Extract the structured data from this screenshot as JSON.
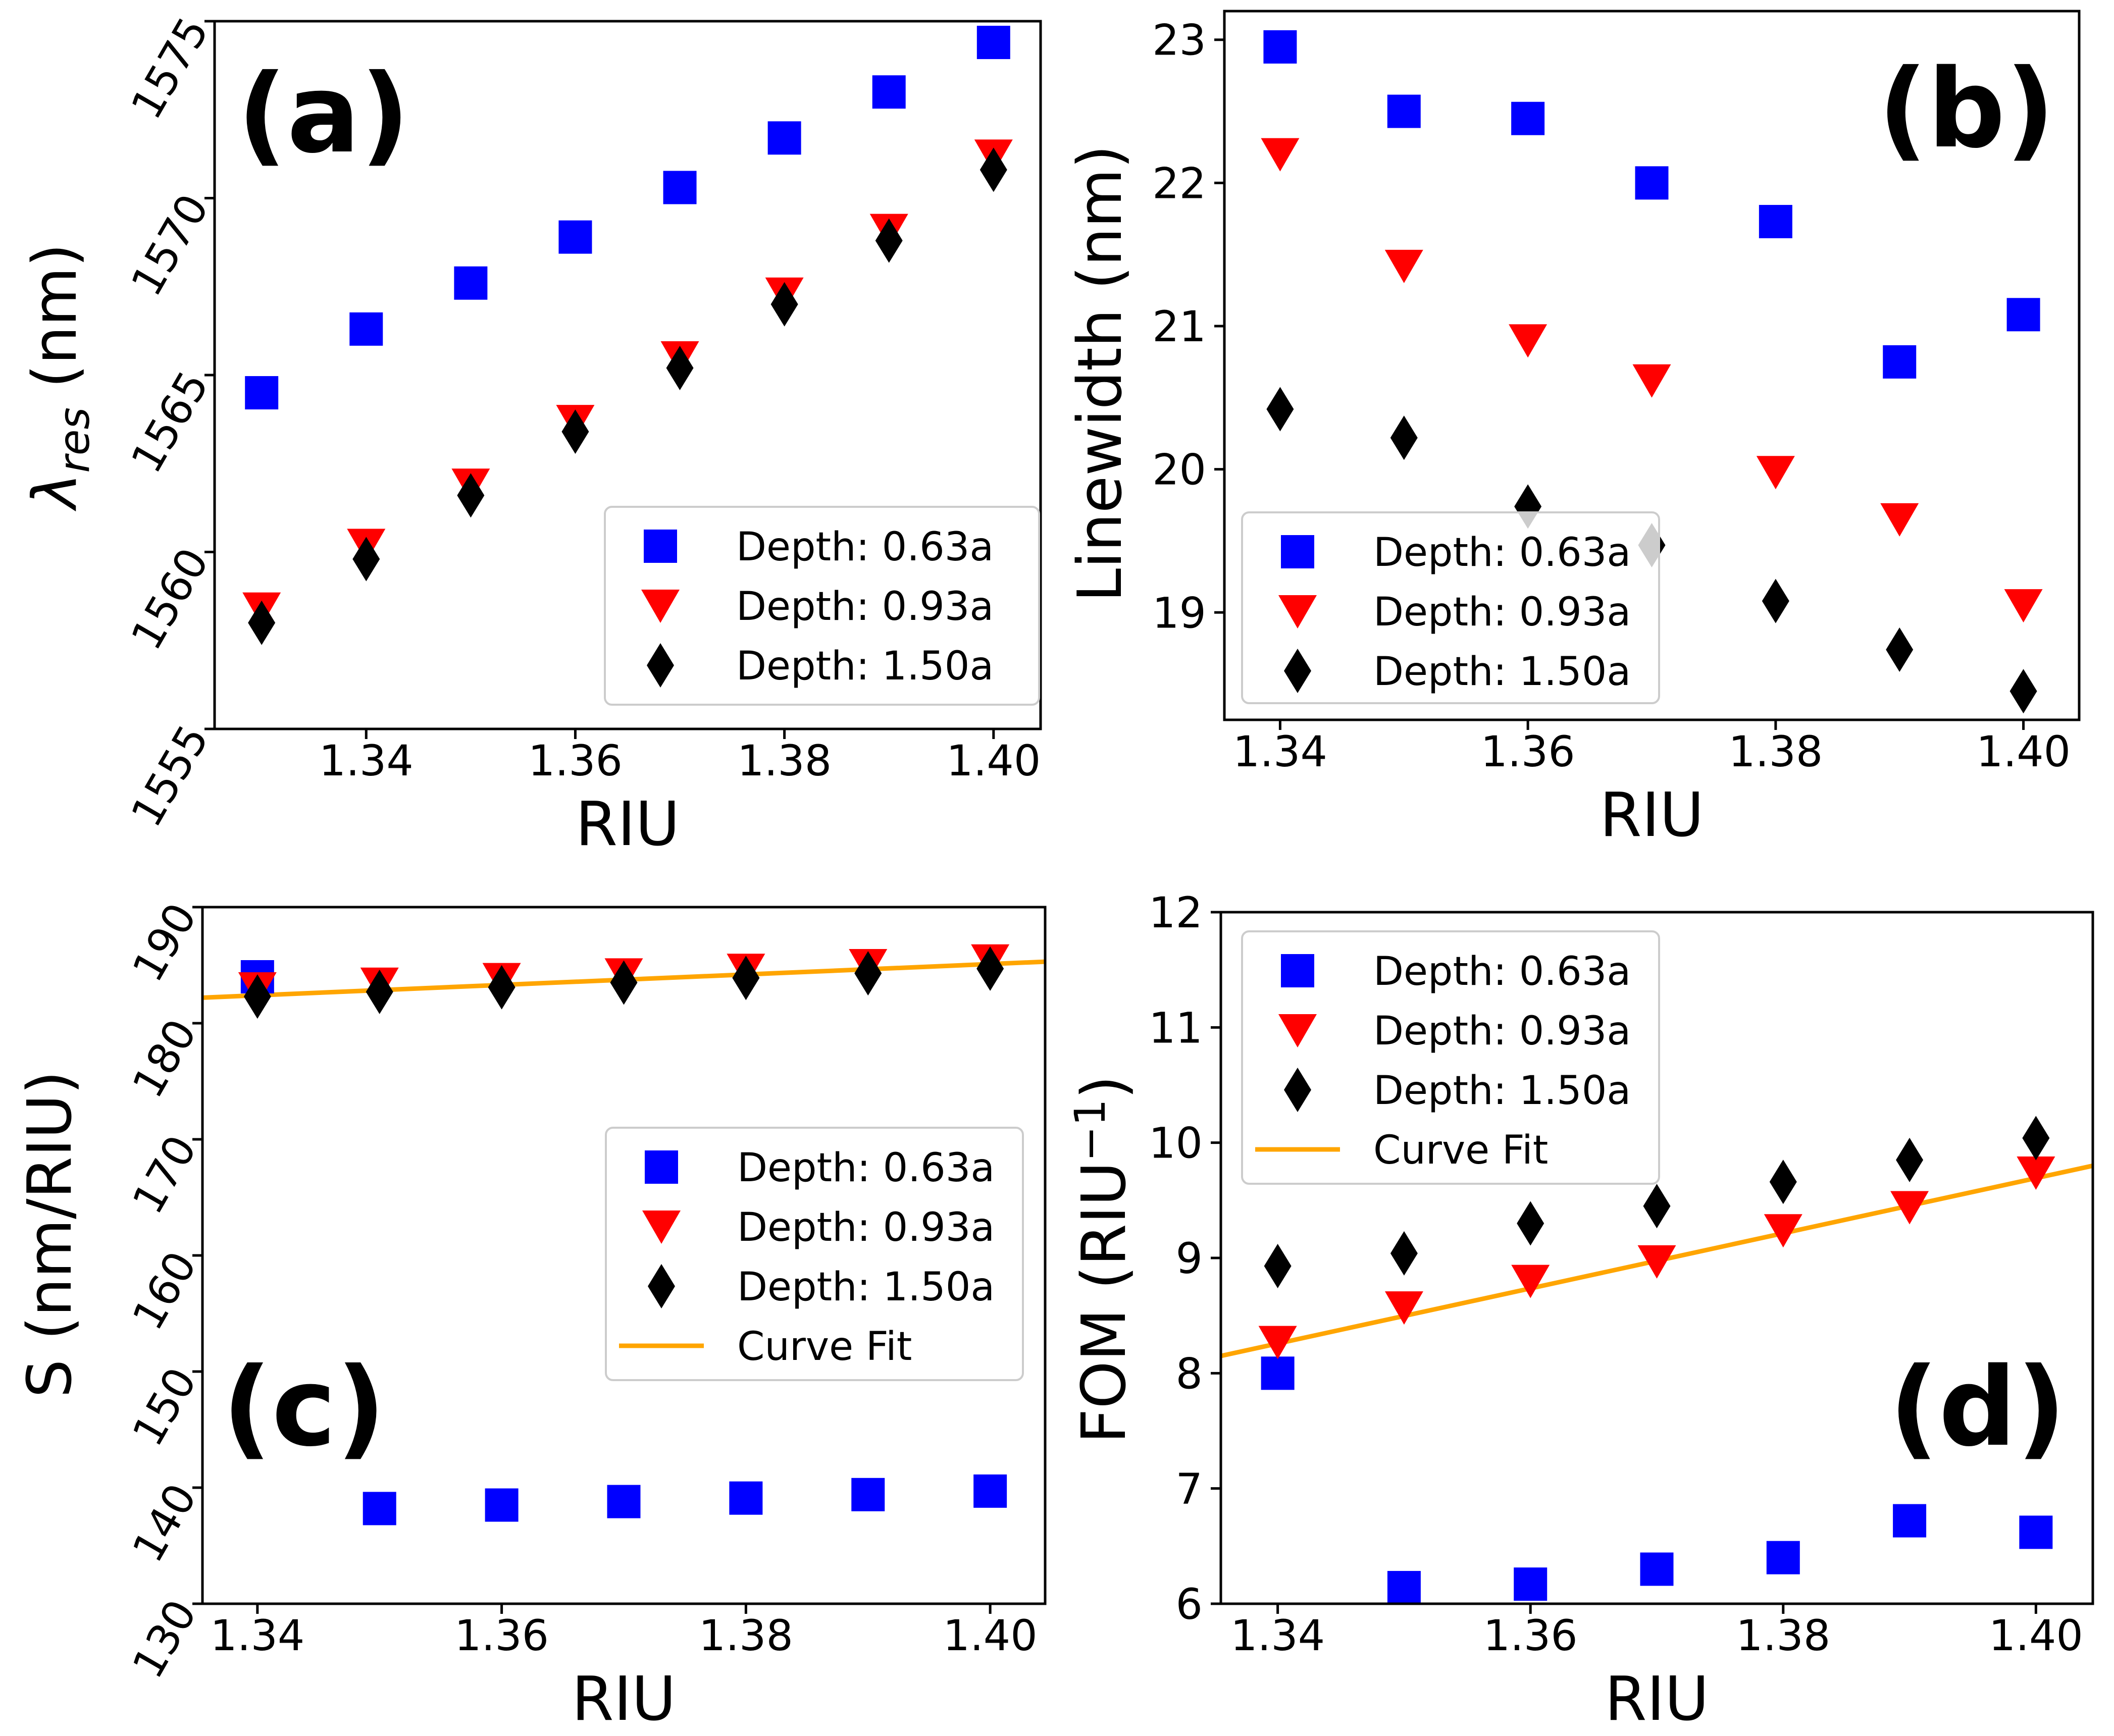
{
  "colors": {
    "depth_063": "#0000ff",
    "depth_093": "#ff0000",
    "depth_150": "#000000",
    "fit": "#ffa500"
  },
  "chart_data": [
    {
      "id": "a",
      "type": "scatter",
      "panel_label": "(a)",
      "panel_label_pos": "top-left",
      "title": "",
      "xlabel": "RIU",
      "ylabel_main": "λ",
      "ylabel_sub": "res",
      "ylabel_tail": " (nm)",
      "xlim": [
        1.3255,
        1.4045
      ],
      "ylim": [
        1555,
        1575
      ],
      "xticks": [
        1.34,
        1.36,
        1.38,
        1.4
      ],
      "xtick_labels": [
        "1.34",
        "1.36",
        "1.38",
        "1.40"
      ],
      "yticks": [
        1555,
        1560,
        1565,
        1570,
        1575
      ],
      "ytick_labels": [
        "1555",
        "1560",
        "1565",
        "1570",
        "1575"
      ],
      "ytick_rotation": 60,
      "legend_position": "lower-right",
      "series": [
        {
          "name": "Depth: 0.63a",
          "marker": "square",
          "color": "#0000ff",
          "x": [
            1.33,
            1.34,
            1.35,
            1.36,
            1.37,
            1.38,
            1.39,
            1.4
          ],
          "y": [
            1564.5,
            1566.3,
            1567.6,
            1568.9,
            1570.3,
            1571.7,
            1573.0,
            1574.4
          ]
        },
        {
          "name": "Depth: 0.93a",
          "marker": "triangle-down",
          "color": "#ff0000",
          "x": [
            1.33,
            1.34,
            1.35,
            1.36,
            1.37,
            1.38,
            1.39,
            1.4
          ],
          "y": [
            1558.4,
            1560.2,
            1561.9,
            1563.7,
            1565.5,
            1567.3,
            1569.1,
            1571.2
          ]
        },
        {
          "name": "Depth: 1.50a",
          "marker": "diamond",
          "color": "#000000",
          "x": [
            1.33,
            1.34,
            1.35,
            1.36,
            1.37,
            1.38,
            1.39,
            1.4
          ],
          "y": [
            1558.0,
            1559.8,
            1561.6,
            1563.4,
            1565.2,
            1567.0,
            1568.8,
            1570.8
          ]
        }
      ]
    },
    {
      "id": "b",
      "type": "scatter",
      "panel_label": "(b)",
      "panel_label_pos": "top-right",
      "title": "",
      "xlabel": "RIU",
      "ylabel_main": "Linewidth (nm)",
      "ylabel_sub": "",
      "ylabel_tail": "",
      "xlim": [
        1.3355,
        1.4045
      ],
      "ylim": [
        18.25,
        23.2
      ],
      "xticks": [
        1.34,
        1.36,
        1.38,
        1.4
      ],
      "xtick_labels": [
        "1.34",
        "1.36",
        "1.38",
        "1.40"
      ],
      "yticks": [
        19,
        20,
        21,
        22,
        23
      ],
      "ytick_labels": [
        "19",
        "20",
        "21",
        "22",
        "23"
      ],
      "ytick_rotation": 0,
      "legend_position": "lower-left",
      "series": [
        {
          "name": "Depth: 0.63a",
          "marker": "square",
          "color": "#0000ff",
          "x": [
            1.34,
            1.35,
            1.36,
            1.37,
            1.38,
            1.39,
            1.4
          ],
          "y": [
            22.95,
            22.5,
            22.45,
            22.0,
            21.73,
            20.75,
            21.08
          ]
        },
        {
          "name": "Depth: 0.93a",
          "marker": "triangle-down",
          "color": "#ff0000",
          "x": [
            1.34,
            1.35,
            1.36,
            1.37,
            1.38,
            1.39,
            1.4
          ],
          "y": [
            22.2,
            21.42,
            20.9,
            20.62,
            19.98,
            19.65,
            19.05
          ]
        },
        {
          "name": "Depth: 1.50a",
          "marker": "diamond",
          "color": "#000000",
          "x": [
            1.34,
            1.35,
            1.36,
            1.37,
            1.38,
            1.39,
            1.4
          ],
          "y": [
            20.42,
            20.22,
            19.74,
            19.47,
            19.08,
            18.74,
            18.45
          ]
        }
      ]
    },
    {
      "id": "c",
      "type": "scatter",
      "panel_label": "(c)",
      "panel_label_pos": "bottom-left",
      "title": "",
      "xlabel": "RIU",
      "ylabel_main": "S (nm/RIU)",
      "ylabel_sub": "",
      "ylabel_tail": "",
      "xlim": [
        1.3355,
        1.4045
      ],
      "ylim": [
        130,
        190
      ],
      "xticks": [
        1.34,
        1.36,
        1.38,
        1.4
      ],
      "xtick_labels": [
        "1.34",
        "1.36",
        "1.38",
        "1.40"
      ],
      "yticks": [
        130,
        140,
        150,
        160,
        170,
        180,
        190
      ],
      "ytick_labels": [
        "130",
        "140",
        "150",
        "160",
        "170",
        "180",
        "190"
      ],
      "ytick_rotation": 60,
      "legend_position": "center-right",
      "fit": {
        "name": "Curve Fit",
        "x": [
          1.3355,
          1.4045
        ],
        "y": [
          182.2,
          185.3
        ]
      },
      "series": [
        {
          "name": "Depth: 0.63a",
          "marker": "square",
          "color": "#0000ff",
          "x": [
            1.34,
            1.35,
            1.36,
            1.37,
            1.38,
            1.39,
            1.4
          ],
          "y": [
            184.0,
            138.2,
            138.5,
            138.8,
            139.1,
            139.4,
            139.7
          ]
        },
        {
          "name": "Depth: 0.93a",
          "marker": "triangle-down",
          "color": "#ff0000",
          "x": [
            1.34,
            1.35,
            1.36,
            1.37,
            1.38,
            1.39,
            1.4
          ],
          "y": [
            183.0,
            183.4,
            183.8,
            184.2,
            184.6,
            185.0,
            185.4
          ]
        },
        {
          "name": "Depth: 1.50a",
          "marker": "diamond",
          "color": "#000000",
          "x": [
            1.34,
            1.35,
            1.36,
            1.37,
            1.38,
            1.39,
            1.4
          ],
          "y": [
            182.3,
            182.7,
            183.1,
            183.5,
            183.9,
            184.3,
            184.7
          ]
        }
      ]
    },
    {
      "id": "d",
      "type": "scatter",
      "panel_label": "(d)",
      "panel_label_pos": "bottom-right",
      "title": "",
      "xlabel": "RIU",
      "ylabel_main": "FOM (RIU",
      "ylabel_sub": "",
      "ylabel_sup": "−1",
      "ylabel_tail": ")",
      "xlim": [
        1.3355,
        1.4045
      ],
      "ylim": [
        6,
        12
      ],
      "xticks": [
        1.34,
        1.36,
        1.38,
        1.4
      ],
      "xtick_labels": [
        "1.34",
        "1.36",
        "1.38",
        "1.40"
      ],
      "yticks": [
        6,
        7,
        8,
        9,
        10,
        11,
        12
      ],
      "ytick_labels": [
        "6",
        "7",
        "8",
        "9",
        "10",
        "11",
        "12"
      ],
      "ytick_rotation": 0,
      "legend_position": "top-left",
      "fit": {
        "name": "Curve Fit",
        "x": [
          1.3355,
          1.4045
        ],
        "y": [
          8.15,
          9.8
        ]
      },
      "series": [
        {
          "name": "Depth: 0.63a",
          "marker": "square",
          "color": "#0000ff",
          "x": [
            1.34,
            1.35,
            1.36,
            1.37,
            1.38,
            1.39,
            1.4
          ],
          "y": [
            8.0,
            6.14,
            6.17,
            6.3,
            6.4,
            6.72,
            6.62
          ]
        },
        {
          "name": "Depth: 0.93a",
          "marker": "triangle-down",
          "color": "#ff0000",
          "x": [
            1.34,
            1.35,
            1.36,
            1.37,
            1.38,
            1.39,
            1.4
          ],
          "y": [
            8.27,
            8.57,
            8.8,
            8.97,
            9.24,
            9.44,
            9.74
          ]
        },
        {
          "name": "Depth: 1.50a",
          "marker": "diamond",
          "color": "#000000",
          "x": [
            1.34,
            1.35,
            1.36,
            1.37,
            1.38,
            1.39,
            1.4
          ],
          "y": [
            8.93,
            9.04,
            9.3,
            9.45,
            9.66,
            9.85,
            10.04
          ]
        }
      ]
    }
  ]
}
